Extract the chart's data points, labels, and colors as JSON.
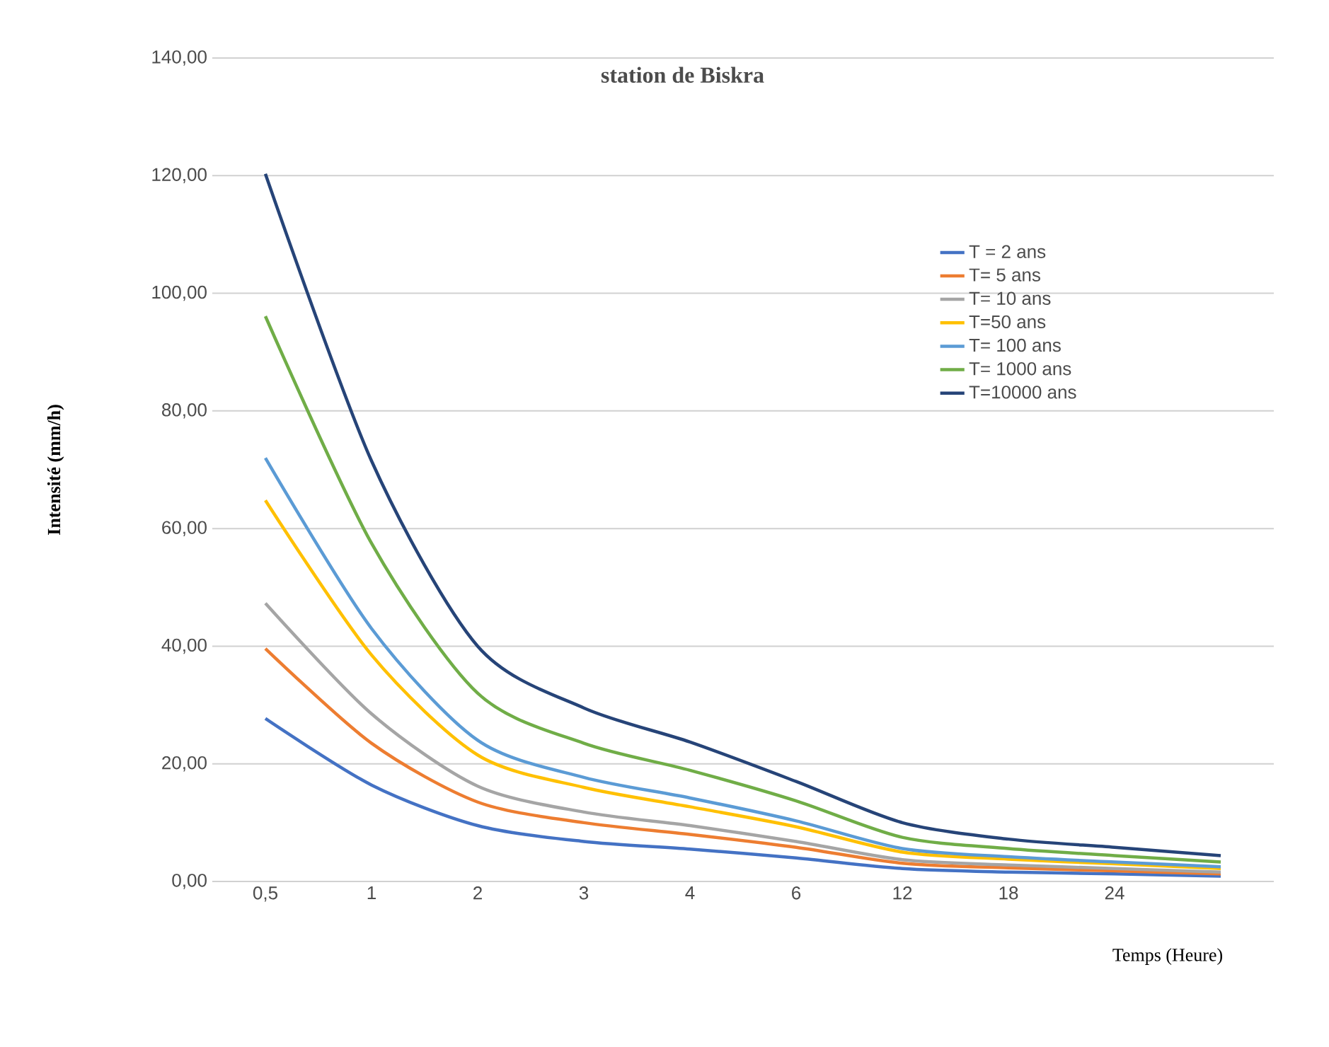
{
  "chart_data": {
    "type": "line",
    "title": "station de Biskra",
    "xlabel": "Temps (Heure)",
    "ylabel": "Intensité (mm/h)",
    "categories": [
      "0,5",
      "1",
      "2",
      "3",
      "4",
      "6",
      "12",
      "18",
      "24",
      null
    ],
    "ylim": [
      0,
      140
    ],
    "yticks": [
      {
        "value": 0,
        "label": "0,00"
      },
      {
        "value": 20,
        "label": "20,00"
      },
      {
        "value": 40,
        "label": "40,00"
      },
      {
        "value": 60,
        "label": "60,00"
      },
      {
        "value": 80,
        "label": "80,00"
      },
      {
        "value": 100,
        "label": "100,00"
      },
      {
        "value": 120,
        "label": "120,00"
      },
      {
        "value": 140,
        "label": "140,00"
      }
    ],
    "grid": "y",
    "legend": "top right",
    "marker": "none",
    "line_style": "solid",
    "series": [
      {
        "name": "T = 2 ans",
        "color": "#4472c4",
        "values": [
          27.7,
          16.4,
          9.5,
          6.8,
          5.5,
          4.0,
          2.2,
          1.6,
          1.3,
          0.9
        ]
      },
      {
        "name": "T= 5 ans",
        "color": "#ed7d31",
        "values": [
          39.6,
          23.5,
          13.5,
          10.0,
          8.0,
          5.8,
          3.1,
          2.3,
          1.8,
          1.3
        ]
      },
      {
        "name": "T= 10 ans",
        "color": "#a5a5a5",
        "values": [
          47.3,
          28.5,
          16.2,
          11.8,
          9.5,
          6.8,
          3.7,
          2.8,
          2.2,
          1.6
        ]
      },
      {
        "name": "T=50 ans",
        "color": "#ffc000",
        "values": [
          64.8,
          38.5,
          21.5,
          16.0,
          12.7,
          9.3,
          5.0,
          3.8,
          3.0,
          2.2
        ]
      },
      {
        "name": "T= 100 ans",
        "color": "#5b9bd5",
        "values": [
          72.0,
          43.0,
          24.0,
          17.7,
          14.2,
          10.3,
          5.6,
          4.2,
          3.3,
          2.5
        ]
      },
      {
        "name": "T= 1000 ans",
        "color": "#70ad47",
        "values": [
          96.1,
          57.5,
          32.0,
          23.5,
          18.9,
          13.7,
          7.5,
          5.6,
          4.4,
          3.3
        ]
      },
      {
        "name": "T=10000 ans",
        "color": "#264478",
        "values": [
          120.3,
          71.5,
          40.0,
          29.5,
          23.7,
          17.0,
          10.0,
          7.2,
          5.8,
          4.4
        ]
      }
    ]
  }
}
